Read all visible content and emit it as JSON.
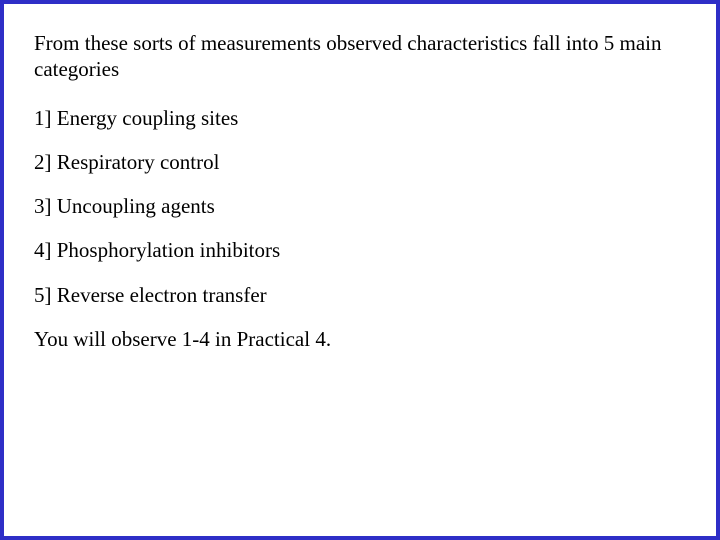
{
  "slide": {
    "border_color": "#2e2ec7",
    "background_color": "#ffffff",
    "text_color": "#000000",
    "font_family": "Times New Roman",
    "font_size_pt": 16,
    "intro": "From these sorts of measurements observed characteristics fall into 5 main categories",
    "items": [
      "1] Energy coupling sites",
      "2] Respiratory control",
      "3] Uncoupling agents",
      "4] Phosphorylation inhibitors",
      "5] Reverse electron transfer"
    ],
    "closing": "You will observe 1-4 in Practical 4."
  }
}
